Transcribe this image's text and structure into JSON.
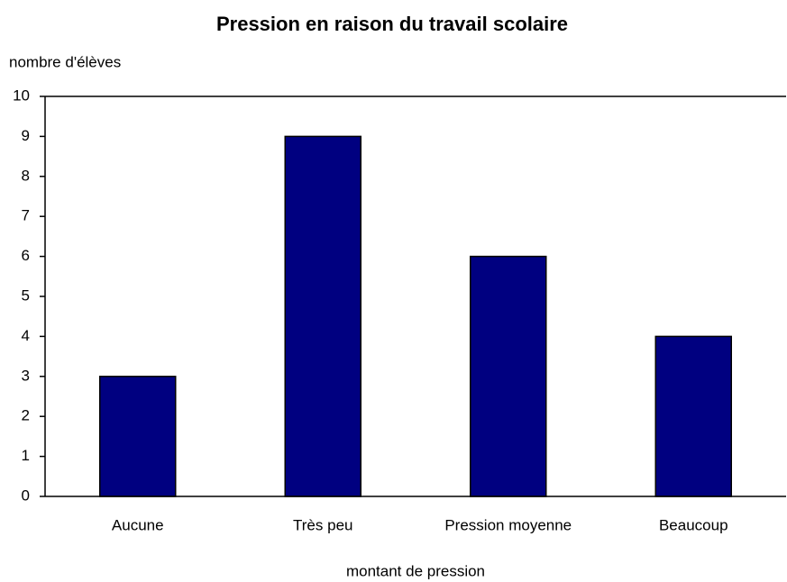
{
  "chart_data": {
    "type": "bar",
    "title": "Pression en raison du travail scolaire",
    "y_label": "nombre d'élèves",
    "x_label": "montant de pression",
    "categories": [
      "Aucune",
      "Très peu",
      "Pression moyenne",
      "Beaucoup"
    ],
    "values": [
      3,
      9,
      6,
      4
    ],
    "color": "#000080",
    "ylim": [
      0,
      10
    ],
    "yticks": [
      0,
      1,
      2,
      3,
      4,
      5,
      6,
      7,
      8,
      9,
      10
    ],
    "grid": false
  }
}
